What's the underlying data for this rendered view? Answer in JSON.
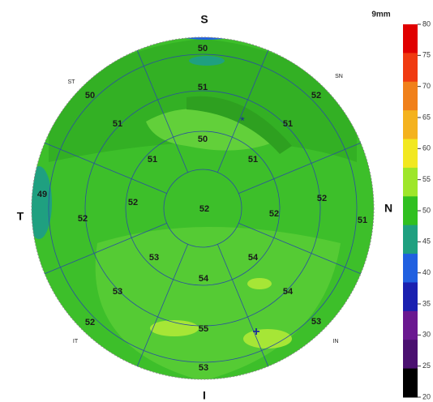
{
  "orientation": {
    "superior": "S",
    "nasal": "N",
    "temporal": "T",
    "inferior": "I",
    "superotemporal": "ST",
    "superonasal": "SN",
    "inferotemporal": "IT",
    "inferonasal": "IN"
  },
  "sector_values": [
    "50",
    "51",
    "50",
    "52",
    "50",
    "51",
    "51",
    "49",
    "52",
    "52",
    "53",
    "53",
    "52",
    "54",
    "55",
    "53",
    "54",
    "54",
    "53",
    "52",
    "52",
    "51",
    "51",
    "51",
    "52"
  ],
  "scale": {
    "unit": "9mm",
    "ticks": [
      80,
      75,
      70,
      65,
      60,
      55,
      50,
      45,
      40,
      35,
      30,
      25,
      20
    ],
    "colors": [
      "#e00000",
      "#f03a10",
      "#f0801a",
      "#f4b21e",
      "#f2e820",
      "#9ee62a",
      "#30c020",
      "#1fa080",
      "#2060e0",
      "#1a20b0",
      "#6a1890",
      "#4a1070",
      "#000000"
    ]
  }
}
